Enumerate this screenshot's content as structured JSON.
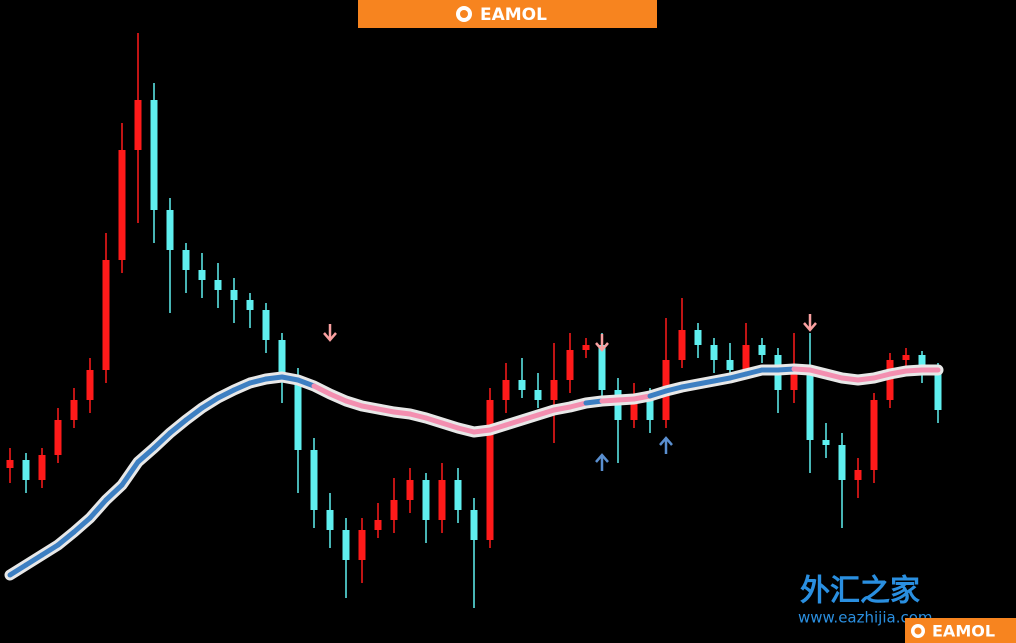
{
  "header": {
    "logo": "EAMOL"
  },
  "chart_data": {
    "type": "candlestick",
    "ylim": [
      0,
      643
    ],
    "up_color": "#ff1a1a",
    "down_color": "#5ff0f0",
    "candles": [
      [
        175,
        195,
        160,
        183
      ],
      [
        183,
        190,
        150,
        163
      ],
      [
        163,
        195,
        155,
        188
      ],
      [
        188,
        235,
        180,
        223
      ],
      [
        223,
        255,
        215,
        243
      ],
      [
        243,
        285,
        230,
        273
      ],
      [
        273,
        410,
        260,
        383
      ],
      [
        383,
        520,
        370,
        493
      ],
      [
        493,
        610,
        420,
        543
      ],
      [
        543,
        560,
        400,
        433
      ],
      [
        433,
        445,
        330,
        393
      ],
      [
        393,
        400,
        350,
        373
      ],
      [
        373,
        390,
        345,
        363
      ],
      [
        363,
        380,
        335,
        353
      ],
      [
        353,
        365,
        320,
        343
      ],
      [
        343,
        350,
        315,
        333
      ],
      [
        333,
        340,
        290,
        303
      ],
      [
        303,
        310,
        240,
        263
      ],
      [
        263,
        275,
        150,
        193
      ],
      [
        193,
        205,
        115,
        133
      ],
      [
        133,
        150,
        95,
        113
      ],
      [
        113,
        125,
        45,
        83
      ],
      [
        83,
        125,
        60,
        113
      ],
      [
        113,
        140,
        105,
        123
      ],
      [
        123,
        165,
        110,
        143
      ],
      [
        143,
        175,
        130,
        163
      ],
      [
        163,
        170,
        100,
        123
      ],
      [
        123,
        180,
        110,
        163
      ],
      [
        163,
        175,
        120,
        133
      ],
      [
        133,
        145,
        35,
        103
      ],
      [
        103,
        255,
        95,
        243
      ],
      [
        243,
        280,
        230,
        263
      ],
      [
        263,
        285,
        245,
        253
      ],
      [
        253,
        270,
        235,
        243
      ],
      [
        243,
        300,
        200,
        263
      ],
      [
        263,
        310,
        250,
        293
      ],
      [
        293,
        305,
        285,
        298
      ],
      [
        298,
        310,
        240,
        253
      ],
      [
        253,
        265,
        180,
        223
      ],
      [
        223,
        260,
        215,
        248
      ],
      [
        248,
        255,
        210,
        223
      ],
      [
        223,
        325,
        215,
        283
      ],
      [
        283,
        345,
        275,
        313
      ],
      [
        313,
        320,
        285,
        298
      ],
      [
        298,
        305,
        270,
        283
      ],
      [
        283,
        300,
        265,
        273
      ],
      [
        273,
        320,
        265,
        298
      ],
      [
        298,
        305,
        280,
        288
      ],
      [
        288,
        295,
        230,
        253
      ],
      [
        253,
        310,
        240,
        273
      ],
      [
        273,
        310,
        170,
        203
      ],
      [
        203,
        220,
        185,
        198
      ],
      [
        198,
        210,
        115,
        163
      ],
      [
        163,
        185,
        145,
        173
      ],
      [
        173,
        250,
        160,
        243
      ],
      [
        243,
        290,
        235,
        283
      ],
      [
        283,
        295,
        275,
        288
      ],
      [
        288,
        292,
        260,
        273
      ],
      [
        273,
        280,
        220,
        233
      ]
    ],
    "ma": {
      "values": [
        68,
        78,
        88,
        98,
        111,
        125,
        143,
        158,
        181,
        195,
        210,
        223,
        235,
        245,
        253,
        260,
        264,
        266,
        263,
        257,
        249,
        242,
        237,
        234,
        231,
        229,
        225,
        220,
        215,
        211,
        213,
        218,
        223,
        228,
        233,
        236,
        240,
        242,
        243,
        244,
        247,
        252,
        256,
        259,
        262,
        265,
        269,
        273,
        273,
        274,
        273,
        269,
        265,
        263,
        265,
        269,
        272,
        273,
        273
      ],
      "colors": [
        "#3d7fc2",
        "#3d7fc2",
        "#3d7fc2",
        "#3d7fc2",
        "#3d7fc2",
        "#3d7fc2",
        "#3d7fc2",
        "#3d7fc2",
        "#3d7fc2",
        "#3d7fc2",
        "#3d7fc2",
        "#3d7fc2",
        "#3d7fc2",
        "#3d7fc2",
        "#3d7fc2",
        "#3d7fc2",
        "#3d7fc2",
        "#3d7fc2",
        "#3d7fc2",
        "#3d7fc2",
        "#f38fb0",
        "#f38fb0",
        "#f38fb0",
        "#f38fb0",
        "#f38fb0",
        "#f38fb0",
        "#f38fb0",
        "#f38fb0",
        "#f38fb0",
        "#f38fb0",
        "#f38fb0",
        "#f38fb0",
        "#f38fb0",
        "#f38fb0",
        "#f38fb0",
        "#f38fb0",
        "#f38fb0",
        "#3d7fc2",
        "#f38fb0",
        "#f38fb0",
        "#f38fb0",
        "#3d7fc2",
        "#3d7fc2",
        "#3d7fc2",
        "#3d7fc2",
        "#3d7fc2",
        "#3d7fc2",
        "#3d7fc2",
        "#3d7fc2",
        "#3d7fc2",
        "#f38fb0",
        "#f38fb0",
        "#f38fb0",
        "#f38fb0",
        "#f38fb0",
        "#f38fb0",
        "#f38fb0",
        "#f38fb0",
        "#f38fb0"
      ]
    },
    "arrows": [
      {
        "index": 20,
        "value": 311,
        "direction": "down",
        "color": "#f9a0a0"
      },
      {
        "index": 37,
        "value": 301,
        "direction": "down",
        "color": "#f9a0a0"
      },
      {
        "index": 50,
        "value": 321,
        "direction": "down",
        "color": "#f9a0a0"
      },
      {
        "index": 37,
        "value": 180,
        "direction": "up",
        "color": "#5a8fd0"
      },
      {
        "index": 41,
        "value": 197,
        "direction": "up",
        "color": "#5a8fd0"
      }
    ]
  },
  "watermark": {
    "brand": "外汇之家",
    "url": "www.eazhijia.com",
    "logo": "EAMOL"
  }
}
